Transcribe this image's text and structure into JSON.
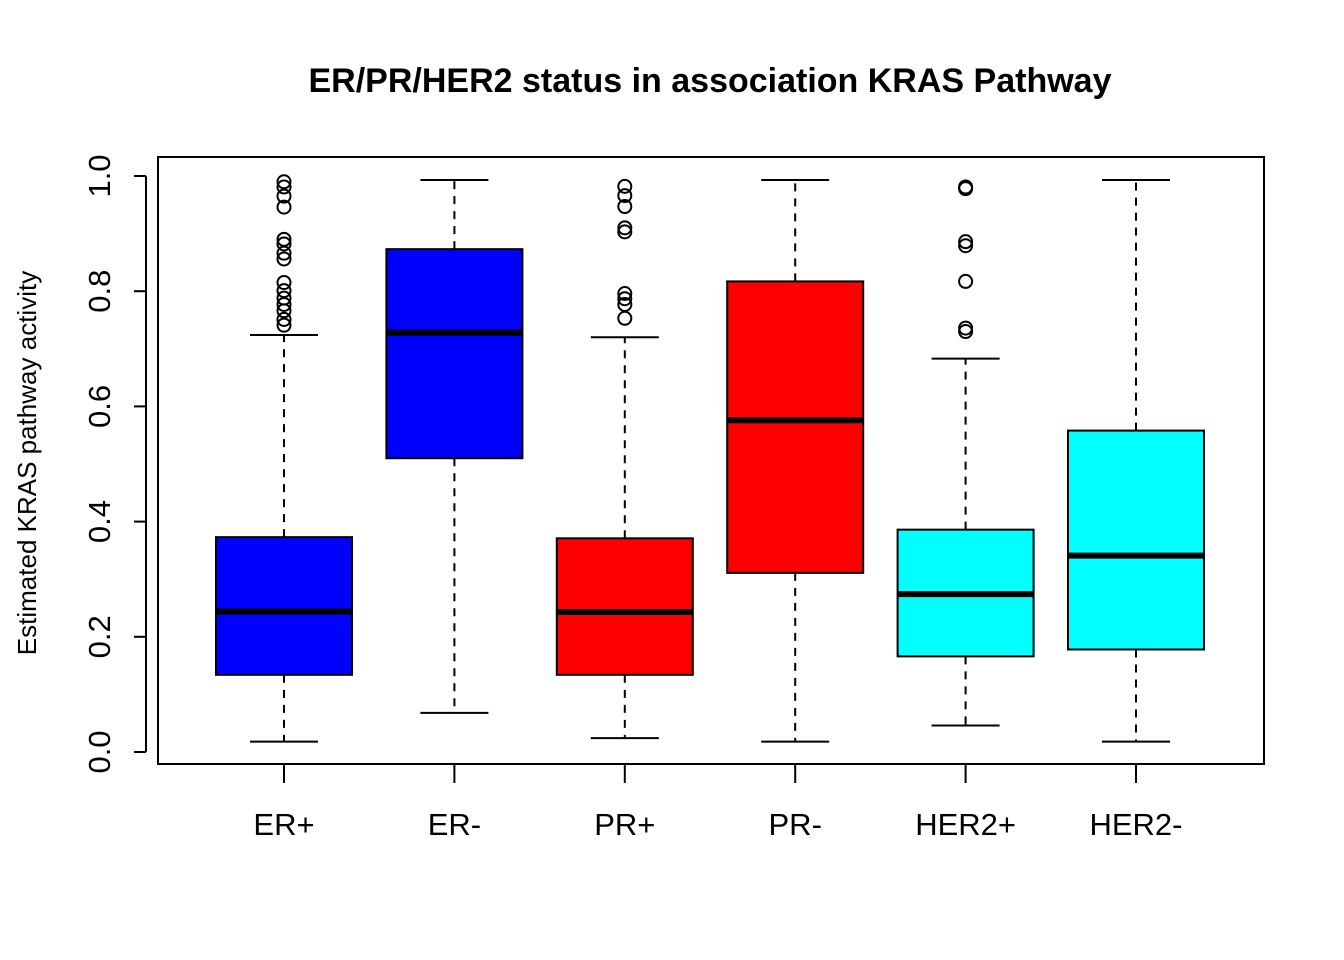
{
  "chart_data": {
    "type": "boxplot",
    "title": "ER/PR/HER2 status in association KRAS Pathway",
    "xlabel": "",
    "ylabel": "Estimated KRAS pathway activity",
    "ylim": [
      0,
      1
    ],
    "yticks": [
      "0.0",
      "0.2",
      "0.4",
      "0.6",
      "0.8",
      "1.0"
    ],
    "grid": false,
    "categories": [
      "ER+",
      "ER-",
      "PR+",
      "PR-",
      "HER2+",
      "HER2-"
    ],
    "boxes": [
      {
        "label": "ER+",
        "color": "#0000FF",
        "whisker_low": 0.018,
        "q1": 0.134,
        "median": 0.244,
        "q3": 0.373,
        "whisker_high": 0.724,
        "outliers": [
          0.741,
          0.751,
          0.766,
          0.777,
          0.788,
          0.801,
          0.815,
          0.856,
          0.866,
          0.882,
          0.89,
          0.946,
          0.965,
          0.981,
          0.99
        ]
      },
      {
        "label": "ER-",
        "color": "#0000FF",
        "whisker_low": 0.068,
        "q1": 0.51,
        "median": 0.728,
        "q3": 0.873,
        "whisker_high": 0.993,
        "outliers": []
      },
      {
        "label": "PR+",
        "color": "#FF0000",
        "whisker_low": 0.024,
        "q1": 0.134,
        "median": 0.243,
        "q3": 0.371,
        "whisker_high": 0.72,
        "outliers": [
          0.753,
          0.777,
          0.787,
          0.796,
          0.903,
          0.91,
          0.947,
          0.966,
          0.982
        ]
      },
      {
        "label": "PR-",
        "color": "#FF0000",
        "whisker_low": 0.018,
        "q1": 0.311,
        "median": 0.576,
        "q3": 0.817,
        "whisker_high": 0.993,
        "outliers": []
      },
      {
        "label": "HER2+",
        "color": "#00FFFF",
        "whisker_low": 0.046,
        "q1": 0.166,
        "median": 0.274,
        "q3": 0.386,
        "whisker_high": 0.683,
        "outliers": [
          0.73,
          0.736,
          0.817,
          0.879,
          0.886,
          0.978,
          0.981
        ]
      },
      {
        "label": "HER2-",
        "color": "#00FFFF",
        "whisker_low": 0.018,
        "q1": 0.178,
        "median": 0.341,
        "q3": 0.558,
        "whisker_high": 0.993,
        "outliers": []
      }
    ]
  }
}
